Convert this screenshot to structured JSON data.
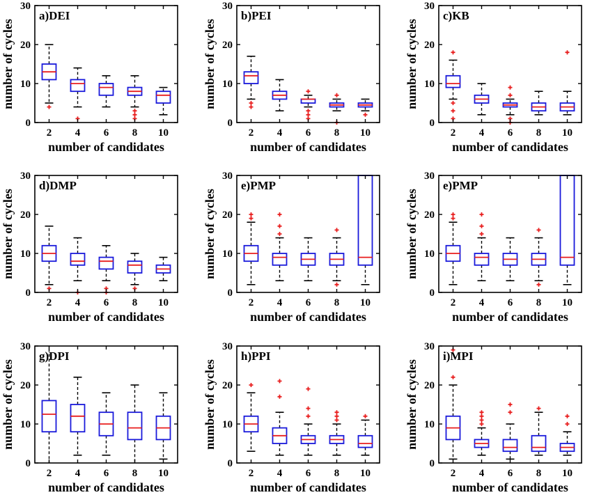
{
  "figure": {
    "ylabel": "number of cycles",
    "xlabel": "number of candidates"
  },
  "chart_data": [
    {
      "type": "box",
      "title": "a)DEI",
      "xlabel": "number of candidates",
      "ylabel": "number of cycles",
      "categories": [
        "2",
        "4",
        "6",
        "8",
        "10"
      ],
      "ylim": [
        0,
        30
      ],
      "yticks": [
        0,
        10,
        20,
        30
      ],
      "boxes": [
        {
          "min": 5,
          "q1": 11,
          "median": 13,
          "q3": 15,
          "max": 20,
          "outliers": [
            4
          ]
        },
        {
          "min": 4,
          "q1": 8,
          "median": 10,
          "q3": 11,
          "max": 14,
          "outliers": [
            1
          ]
        },
        {
          "min": 4,
          "q1": 7,
          "median": 9,
          "q3": 10,
          "max": 12,
          "outliers": []
        },
        {
          "min": 4,
          "q1": 7,
          "median": 8,
          "q3": 9,
          "max": 12,
          "outliers": [
            3,
            2,
            1
          ]
        },
        {
          "min": 2,
          "q1": 5,
          "median": 7,
          "q3": 8,
          "max": 9,
          "outliers": []
        }
      ]
    },
    {
      "type": "box",
      "title": "b)PEI",
      "xlabel": "number of candidates",
      "ylabel": "number of cycles",
      "categories": [
        "2",
        "4",
        "6",
        "8",
        "10"
      ],
      "ylim": [
        0,
        30
      ],
      "yticks": [
        0,
        10,
        20,
        30
      ],
      "boxes": [
        {
          "min": 6,
          "q1": 10,
          "median": 12,
          "q3": 13,
          "max": 17,
          "outliers": [
            5,
            4
          ]
        },
        {
          "min": 3,
          "q1": 6,
          "median": 7,
          "q3": 8,
          "max": 11,
          "outliers": []
        },
        {
          "min": 4,
          "q1": 5,
          "median": 6,
          "q3": 6,
          "max": 7,
          "outliers": [
            8,
            3,
            2,
            1
          ]
        },
        {
          "min": 3,
          "q1": 4,
          "median": 4.5,
          "q3": 5,
          "max": 6,
          "outliers": [
            7,
            0
          ]
        },
        {
          "min": 3,
          "q1": 4,
          "median": 4.5,
          "q3": 5,
          "max": 6,
          "outliers": [
            2
          ]
        }
      ]
    },
    {
      "type": "box",
      "title": "c)KB",
      "xlabel": "number of candidates",
      "ylabel": "number of cycles",
      "categories": [
        "2",
        "4",
        "6",
        "8",
        "10"
      ],
      "ylim": [
        0,
        30
      ],
      "yticks": [
        0,
        10,
        20,
        30
      ],
      "boxes": [
        {
          "min": 6,
          "q1": 9,
          "median": 10,
          "q3": 12,
          "max": 16,
          "outliers": [
            18,
            5,
            3,
            1
          ]
        },
        {
          "min": 2,
          "q1": 5,
          "median": 6,
          "q3": 7,
          "max": 10,
          "outliers": []
        },
        {
          "min": 2,
          "q1": 4,
          "median": 4.5,
          "q3": 5,
          "max": 6,
          "outliers": [
            9,
            7,
            1,
            0
          ]
        },
        {
          "min": 2,
          "q1": 3,
          "median": 4,
          "q3": 5,
          "max": 8,
          "outliers": []
        },
        {
          "min": 2,
          "q1": 3,
          "median": 4,
          "q3": 5,
          "max": 8,
          "outliers": [
            18
          ]
        }
      ]
    },
    {
      "type": "box",
      "title": "d)DMP",
      "xlabel": "number of candidates",
      "ylabel": "number of cycles",
      "categories": [
        "2",
        "4",
        "6",
        "8",
        "10"
      ],
      "ylim": [
        0,
        30
      ],
      "yticks": [
        0,
        10,
        20,
        30
      ],
      "boxes": [
        {
          "min": 2,
          "q1": 8,
          "median": 10,
          "q3": 12,
          "max": 17,
          "outliers": [
            1
          ]
        },
        {
          "min": 3,
          "q1": 7,
          "median": 8,
          "q3": 10,
          "max": 14,
          "outliers": [
            0
          ]
        },
        {
          "min": 3,
          "q1": 6,
          "median": 8,
          "q3": 9,
          "max": 12,
          "outliers": [
            1,
            0
          ]
        },
        {
          "min": 2,
          "q1": 5,
          "median": 7,
          "q3": 8,
          "max": 10,
          "outliers": [
            1
          ]
        },
        {
          "min": 3,
          "q1": 5,
          "median": 6,
          "q3": 7,
          "max": 9,
          "outliers": []
        }
      ]
    },
    {
      "type": "box",
      "title": "e)PMP",
      "xlabel": "number of candidates",
      "ylabel": "number of cycles",
      "categories": [
        "2",
        "4",
        "6",
        "8",
        "10"
      ],
      "ylim": [
        0,
        30
      ],
      "yticks": [
        0,
        10,
        20,
        30
      ],
      "boxes": [
        {
          "min": 2,
          "q1": 8,
          "median": 10,
          "q3": 12,
          "max": 18,
          "outliers": [
            20,
            19
          ]
        },
        {
          "min": 3,
          "q1": 7,
          "median": 9,
          "q3": 10,
          "max": 14,
          "outliers": [
            20,
            17,
            15
          ]
        },
        {
          "min": 3,
          "q1": 7,
          "median": 8.5,
          "q3": 10,
          "max": 14,
          "outliers": []
        },
        {
          "min": 3,
          "q1": 7,
          "median": 8.5,
          "q3": 10,
          "max": 14,
          "outliers": [
            16,
            2
          ]
        },
        {
          "min": 2,
          "q1": 7,
          "median": 9,
          "q3": 30,
          "max": 30,
          "outliers": []
        }
      ]
    },
    {
      "type": "box",
      "title": "e)PMP",
      "xlabel": "number of candidates",
      "ylabel": "number of cycles",
      "categories": [
        "2",
        "4",
        "6",
        "8",
        "10"
      ],
      "ylim": [
        0,
        30
      ],
      "yticks": [
        0,
        10,
        20,
        30
      ],
      "boxes": [
        {
          "min": 2,
          "q1": 8,
          "median": 10,
          "q3": 12,
          "max": 18,
          "outliers": [
            20,
            19
          ]
        },
        {
          "min": 3,
          "q1": 7,
          "median": 9,
          "q3": 10,
          "max": 14,
          "outliers": [
            20,
            17,
            15
          ]
        },
        {
          "min": 3,
          "q1": 7,
          "median": 8.5,
          "q3": 10,
          "max": 14,
          "outliers": []
        },
        {
          "min": 3,
          "q1": 7,
          "median": 8.5,
          "q3": 10,
          "max": 14,
          "outliers": [
            16,
            2
          ]
        },
        {
          "min": 2,
          "q1": 7,
          "median": 9,
          "q3": 30,
          "max": 30,
          "outliers": []
        }
      ]
    },
    {
      "type": "box",
      "title": "g)DPI",
      "xlabel": "number of candidates",
      "ylabel": "number of cycles",
      "categories": [
        "2",
        "4",
        "6",
        "8",
        "10"
      ],
      "ylim": [
        0,
        30
      ],
      "yticks": [
        0,
        10,
        20,
        30
      ],
      "boxes": [
        {
          "min": 0,
          "q1": 8,
          "median": 12.5,
          "q3": 16,
          "max": 30,
          "outliers": []
        },
        {
          "min": 2,
          "q1": 8,
          "median": 12,
          "q3": 15,
          "max": 22,
          "outliers": []
        },
        {
          "min": 2,
          "q1": 7,
          "median": 10,
          "q3": 13,
          "max": 18,
          "outliers": []
        },
        {
          "min": 0,
          "q1": 6,
          "median": 9,
          "q3": 13,
          "max": 20,
          "outliers": []
        },
        {
          "min": 1,
          "q1": 6,
          "median": 9,
          "q3": 12,
          "max": 18,
          "outliers": []
        }
      ]
    },
    {
      "type": "box",
      "title": "h)PPI",
      "xlabel": "number of candidates",
      "ylabel": "number of cycles",
      "categories": [
        "2",
        "4",
        "6",
        "8",
        "10"
      ],
      "ylim": [
        0,
        30
      ],
      "yticks": [
        0,
        10,
        20,
        30
      ],
      "boxes": [
        {
          "min": 3,
          "q1": 8,
          "median": 10,
          "q3": 12,
          "max": 18,
          "outliers": [
            20
          ]
        },
        {
          "min": 2,
          "q1": 5,
          "median": 7,
          "q3": 9,
          "max": 13,
          "outliers": [
            21,
            17
          ]
        },
        {
          "min": 2,
          "q1": 5,
          "median": 6,
          "q3": 7,
          "max": 10,
          "outliers": [
            19,
            14,
            12
          ]
        },
        {
          "min": 2,
          "q1": 5,
          "median": 6,
          "q3": 7,
          "max": 10,
          "outliers": [
            13,
            12,
            11
          ]
        },
        {
          "min": 2,
          "q1": 4,
          "median": 5,
          "q3": 7,
          "max": 11,
          "outliers": [
            12
          ]
        }
      ]
    },
    {
      "type": "box",
      "title": "i)MPI",
      "xlabel": "number of candidates",
      "ylabel": "number of cycles",
      "categories": [
        "2",
        "4",
        "6",
        "8",
        "10"
      ],
      "ylim": [
        0,
        30
      ],
      "yticks": [
        0,
        10,
        20,
        30
      ],
      "boxes": [
        {
          "min": 1,
          "q1": 6,
          "median": 9,
          "q3": 12,
          "max": 20,
          "outliers": [
            29,
            22
          ]
        },
        {
          "min": 2,
          "q1": 4,
          "median": 5,
          "q3": 6,
          "max": 9,
          "outliers": [
            13,
            12,
            11,
            10
          ]
        },
        {
          "min": 1,
          "q1": 3,
          "median": 4,
          "q3": 6,
          "max": 10,
          "outliers": [
            15,
            13
          ]
        },
        {
          "min": 2,
          "q1": 3,
          "median": 4,
          "q3": 7,
          "max": 13,
          "outliers": [
            14
          ]
        },
        {
          "min": 2,
          "q1": 3,
          "median": 4,
          "q3": 5,
          "max": 8,
          "outliers": [
            12,
            10
          ]
        }
      ]
    }
  ]
}
